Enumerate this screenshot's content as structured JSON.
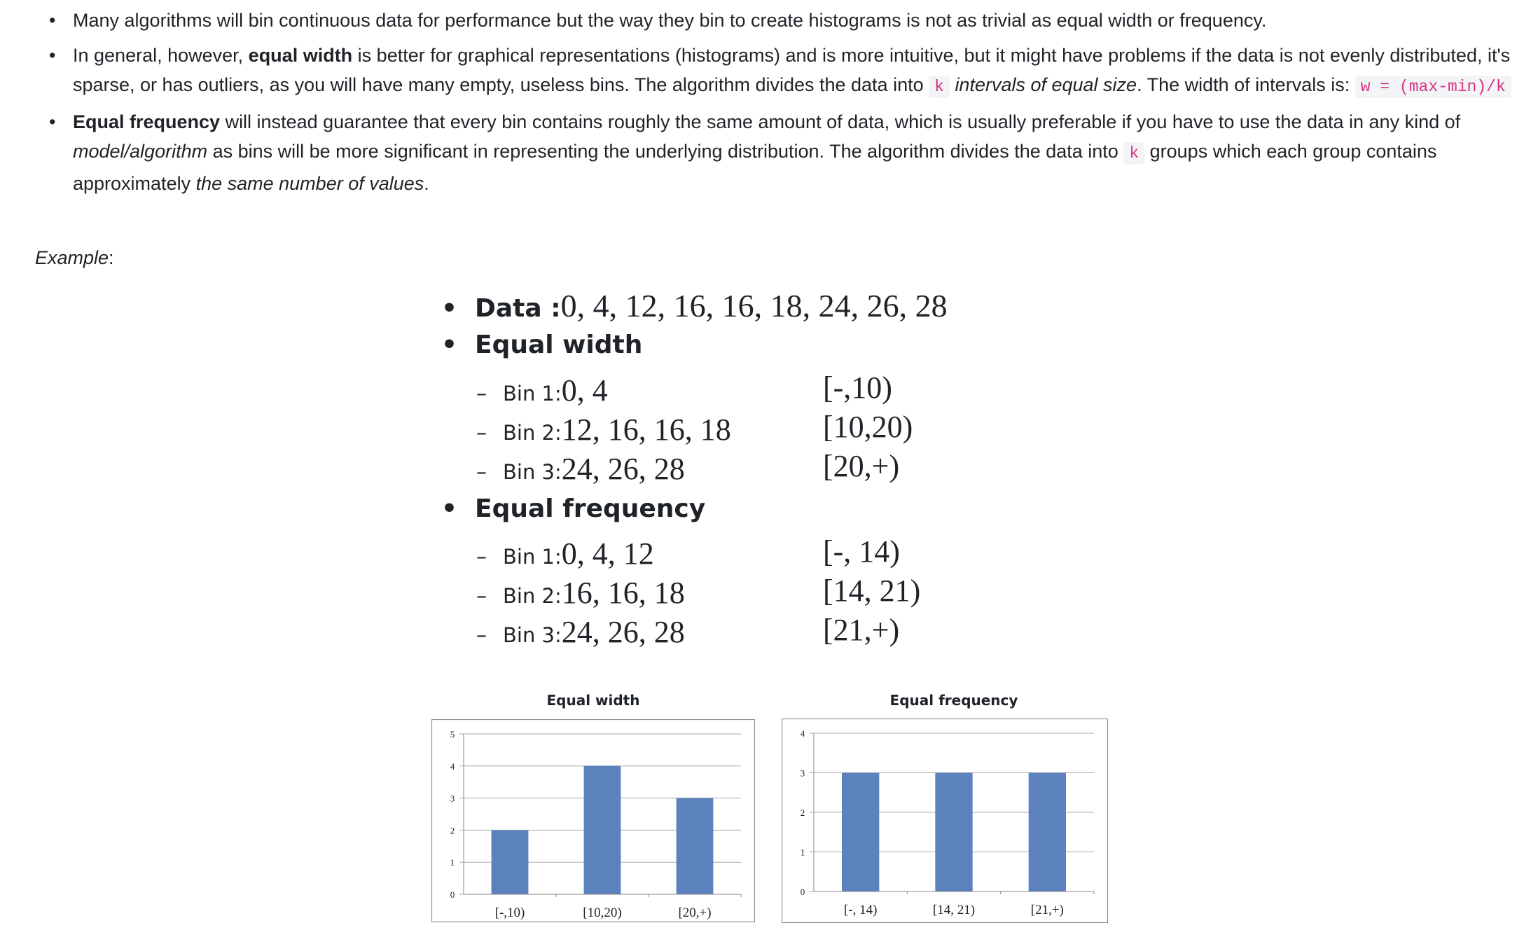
{
  "bullets": [
    {
      "text": "Many algorithms will bin continuous data for performance but the way they bin to create histograms is not as trivial as equal width or frequency."
    },
    {
      "t1": "In general, however, ",
      "bold": "equal width",
      "t2": " is better for graphical representations (histograms) and is more intuitive, but it might have problems if the data is not evenly distributed, it's sparse, or has outliers, as you will have many empty, useless bins. The algorithm divides the data into ",
      "code1": "k",
      "italic": "intervals of equal size",
      "t3": ". The width of intervals is: ",
      "code2": "w = (max-min)/k"
    },
    {
      "bold": "Equal frequency",
      "t1": " will instead guarantee that every bin contains roughly the same amount of data, which is usually preferable if you have to use the data in any kind of ",
      "italic1": "model/algorithm",
      "t2": " as bins will be more significant in representing the underlying distribution. The algorithm divides the data into ",
      "code": "k",
      "t3": " groups which each group contains approximately ",
      "italic2": "the same number of values",
      "t4": "."
    }
  ],
  "example_label": "Example",
  "example_colon": ":",
  "slide": {
    "bullet": "•",
    "dash": "–",
    "data_label": "Data : ",
    "data_values": "0, 4, 12, 16, 16, 18, 24, 26, 28",
    "equal_width": {
      "heading": "Equal width",
      "bins": [
        {
          "label": "Bin 1: ",
          "values": "0, 4",
          "interval": "[-,10)"
        },
        {
          "label": "Bin 2: ",
          "values": "12, 16, 16, 18",
          "interval": "[10,20)"
        },
        {
          "label": "Bin 3: ",
          "values": "24, 26, 28",
          "interval": "[20,+)"
        }
      ]
    },
    "equal_frequency": {
      "heading": "Equal frequency",
      "bins": [
        {
          "label": "Bin 1: ",
          "values": "0, 4, 12",
          "interval": "[-, 14)"
        },
        {
          "label": "Bin 2: ",
          "values": "16, 16, 18",
          "interval": "[14, 21)"
        },
        {
          "label": "Bin 3: ",
          "values": "24, 26, 28",
          "interval": "[21,+)"
        }
      ]
    }
  },
  "chart_data": [
    {
      "type": "bar",
      "title": "Equal width",
      "categories": [
        "[-,10)",
        "[10,20)",
        "[20,+)"
      ],
      "values": [
        2,
        4,
        3
      ],
      "ylim": [
        0,
        5
      ],
      "yticks": [
        "0",
        "1",
        "2",
        "3",
        "4",
        "5"
      ],
      "grid": true,
      "bar_color": "#5b82bc"
    },
    {
      "type": "bar",
      "title": "Equal frequency",
      "categories": [
        "[-, 14)",
        "[14, 21)",
        "[21,+)"
      ],
      "values": [
        3,
        3,
        3
      ],
      "ylim": [
        0,
        4
      ],
      "yticks": [
        "0",
        "1",
        "2",
        "3",
        "4"
      ],
      "grid": true,
      "bar_color": "#5b82bc"
    }
  ]
}
